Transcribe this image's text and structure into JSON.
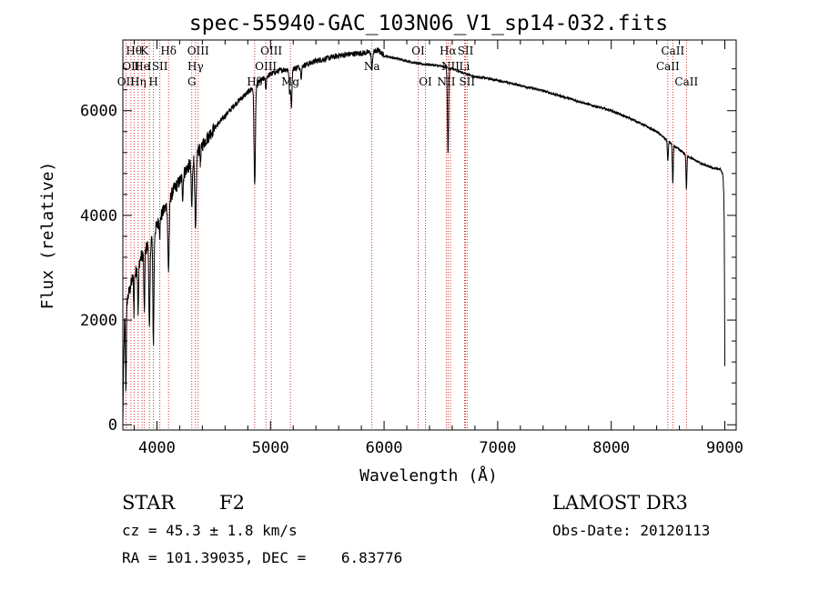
{
  "chart_data": {
    "type": "line",
    "title": "spec-55940-GAC_103N06_V1_sp14-032.fits",
    "xlabel": "Wavelength (Å)",
    "ylabel": "Flux (relative)",
    "xlim": [
      3700,
      9100
    ],
    "ylim": [
      -100,
      7350
    ],
    "x_ticks": [
      4000,
      5000,
      6000,
      7000,
      8000,
      9000
    ],
    "x_tick_labels": [
      "4000",
      "5000",
      "6000",
      "7000",
      "8000",
      "9000"
    ],
    "y_ticks": [
      0,
      2000,
      4000,
      6000
    ],
    "y_tick_labels": [
      "0",
      "2000",
      "4000",
      "6000"
    ],
    "continuum": [
      [
        3700,
        0
      ],
      [
        3705,
        900
      ],
      [
        3715,
        2000
      ],
      [
        3740,
        2400
      ],
      [
        3780,
        2750
      ],
      [
        3820,
        2950
      ],
      [
        3860,
        3200
      ],
      [
        3900,
        3350
      ],
      [
        3950,
        3550
      ],
      [
        4000,
        3800
      ],
      [
        4050,
        4050
      ],
      [
        4100,
        4250
      ],
      [
        4150,
        4500
      ],
      [
        4200,
        4650
      ],
      [
        4250,
        4850
      ],
      [
        4300,
        5000
      ],
      [
        4350,
        5200
      ],
      [
        4400,
        5350
      ],
      [
        4450,
        5500
      ],
      [
        4500,
        5650
      ],
      [
        4600,
        5900
      ],
      [
        4700,
        6150
      ],
      [
        4800,
        6350
      ],
      [
        4900,
        6550
      ],
      [
        5000,
        6700
      ],
      [
        5100,
        6780
      ],
      [
        5200,
        6800
      ],
      [
        5300,
        6870
      ],
      [
        5400,
        6950
      ],
      [
        5500,
        7000
      ],
      [
        5600,
        7050
      ],
      [
        5700,
        7080
      ],
      [
        5800,
        7100
      ],
      [
        5900,
        7120
      ],
      [
        5950,
        7150
      ],
      [
        6000,
        7050
      ],
      [
        6100,
        7000
      ],
      [
        6200,
        6950
      ],
      [
        6300,
        6900
      ],
      [
        6400,
        6880
      ],
      [
        6500,
        6850
      ],
      [
        6600,
        6800
      ],
      [
        6700,
        6720
      ],
      [
        6800,
        6650
      ],
      [
        6900,
        6620
      ],
      [
        7000,
        6580
      ],
      [
        7200,
        6480
      ],
      [
        7400,
        6380
      ],
      [
        7600,
        6250
      ],
      [
        7800,
        6120
      ],
      [
        8000,
        6000
      ],
      [
        8200,
        5820
      ],
      [
        8400,
        5600
      ],
      [
        8500,
        5420
      ],
      [
        8600,
        5250
      ],
      [
        8700,
        5100
      ],
      [
        8800,
        4980
      ],
      [
        8900,
        4900
      ],
      [
        8960,
        4880
      ],
      [
        8990,
        4750
      ],
      [
        8995,
        3900
      ],
      [
        9000,
        1100
      ]
    ],
    "absorption_lines": [
      {
        "center": 3727,
        "depth": 1500,
        "width": 4
      },
      {
        "center": 3798,
        "depth": 700,
        "width": 3
      },
      {
        "center": 3835,
        "depth": 900,
        "width": 4
      },
      {
        "center": 3889,
        "depth": 1200,
        "width": 4
      },
      {
        "center": 3934,
        "depth": 1700,
        "width": 5
      },
      {
        "center": 3969,
        "depth": 2100,
        "width": 5
      },
      {
        "center": 4026,
        "depth": 300,
        "width": 3
      },
      {
        "center": 4102,
        "depth": 1300,
        "width": 6
      },
      {
        "center": 4227,
        "depth": 400,
        "width": 4
      },
      {
        "center": 4307,
        "depth": 900,
        "width": 5
      },
      {
        "center": 4340,
        "depth": 1500,
        "width": 6
      },
      {
        "center": 4384,
        "depth": 300,
        "width": 4
      },
      {
        "center": 4861,
        "depth": 1900,
        "width": 6
      },
      {
        "center": 4959,
        "depth": 250,
        "width": 4
      },
      {
        "center": 5169,
        "depth": 500,
        "width": 5
      },
      {
        "center": 5184,
        "depth": 700,
        "width": 5
      },
      {
        "center": 5270,
        "depth": 200,
        "width": 5
      },
      {
        "center": 5893,
        "depth": 350,
        "width": 5
      },
      {
        "center": 6563,
        "depth": 1650,
        "width": 5
      },
      {
        "center": 8498,
        "depth": 400,
        "width": 4
      },
      {
        "center": 8542,
        "depth": 750,
        "width": 4
      },
      {
        "center": 8662,
        "depth": 650,
        "width": 4
      },
      {
        "center": 8990,
        "depth": 300,
        "width": 3
      }
    ],
    "marker_lines": [
      {
        "wavelength": 3727,
        "label": "OII",
        "row": 2
      },
      {
        "wavelength": 3771,
        "label": "OII",
        "row": 1
      },
      {
        "wavelength": 3798,
        "label": "Hθ",
        "row": 0
      },
      {
        "wavelength": 3835,
        "label": "Hη",
        "row": 2
      },
      {
        "wavelength": 3869,
        "label": "He",
        "row": 1
      },
      {
        "wavelength": 3889,
        "label": "K",
        "row": 0
      },
      {
        "wavelength": 3934,
        "label": "I",
        "row": 1
      },
      {
        "wavelength": 3969,
        "label": "H",
        "row": 2
      },
      {
        "wavelength": 4026,
        "label": "SII",
        "row": 1
      },
      {
        "wavelength": 4102,
        "label": "Hδ",
        "row": 0
      },
      {
        "wavelength": 4307,
        "label": "G",
        "row": 2
      },
      {
        "wavelength": 4340,
        "label": "Hγ",
        "row": 1
      },
      {
        "wavelength": 4363,
        "label": "OIII",
        "row": 0
      },
      {
        "wavelength": 4861,
        "label": "Hβ",
        "row": 2
      },
      {
        "wavelength": 4959,
        "label": "OIII",
        "row": 1
      },
      {
        "wavelength": 5007,
        "label": "OIII",
        "row": 0
      },
      {
        "wavelength": 5175,
        "label": "Mg",
        "row": 2
      },
      {
        "wavelength": 5893,
        "label": "Na",
        "row": 1
      },
      {
        "wavelength": 6300,
        "label": "OI",
        "row": 0
      },
      {
        "wavelength": 6364,
        "label": "OI",
        "row": 2
      },
      {
        "wavelength": 6548,
        "label": "NII",
        "row": 2
      },
      {
        "wavelength": 6563,
        "label": "Hα",
        "row": 0
      },
      {
        "wavelength": 6584,
        "label": "NII",
        "row": 1
      },
      {
        "wavelength": 6708,
        "label": "Li",
        "row": 1
      },
      {
        "wavelength": 6717,
        "label": "SII",
        "row": 0
      },
      {
        "wavelength": 6731,
        "label": "SII",
        "row": 2
      },
      {
        "wavelength": 8498,
        "label": "CaII",
        "row": 1
      },
      {
        "wavelength": 8542,
        "label": "CaII",
        "row": 0
      },
      {
        "wavelength": 8662,
        "label": "CaII",
        "row": 2
      }
    ]
  },
  "info": {
    "object_class": "STAR",
    "subclass": "F2",
    "redshift": "cz = 45.3 ± 1.8 km/s",
    "coords": "RA = 101.39035, DEC =    6.83776",
    "survey": "LAMOST DR3",
    "obs_date": "Obs-Date: 20120113"
  },
  "colors": {
    "line": "#000000",
    "marker": "#cc0000",
    "background": "#ffffff"
  }
}
